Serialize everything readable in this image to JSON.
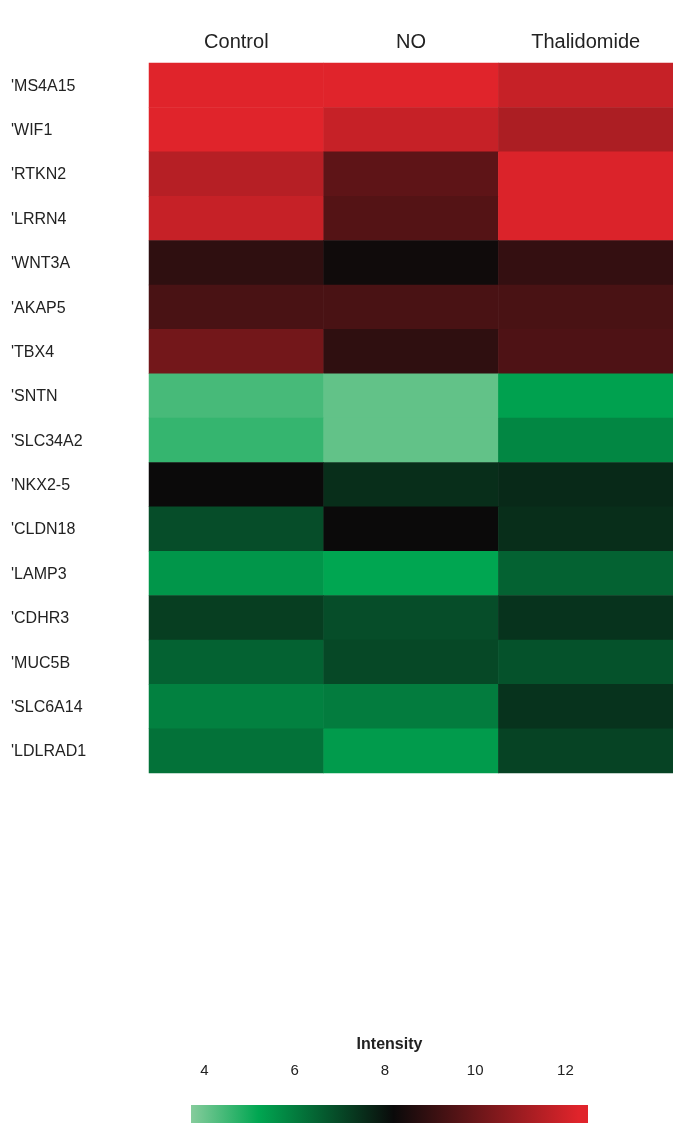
{
  "chart_data": {
    "type": "heatmap",
    "categories": [
      "Control",
      "NO",
      "Thalidomide"
    ],
    "y_categories": [
      "'MS4A15",
      "'WIF1",
      "'RTKN2",
      "'LRRN4",
      "'WNT3A",
      "'AKAP5",
      "'TBX4",
      "'SNTN",
      "'SLC34A2",
      "'NKX2-5",
      "'CLDN18",
      "'LAMP3",
      "'CDHR3",
      "'MUC5B",
      "'SLC6A14",
      "'LDLRAD1"
    ],
    "cells": [
      [
        12.3,
        12.3,
        11.8
      ],
      [
        12.3,
        11.8,
        11.3
      ],
      [
        11.5,
        9.8,
        12.2
      ],
      [
        11.8,
        9.6,
        12.2
      ],
      [
        8.9,
        8.3,
        9.0
      ],
      [
        9.4,
        9.4,
        9.4
      ],
      [
        10.2,
        8.9,
        9.5
      ],
      [
        4.4,
        4.1,
        5.3
      ],
      [
        4.6,
        4.1,
        5.8
      ],
      [
        8.2,
        7.5,
        7.6
      ],
      [
        6.9,
        8.2,
        7.5
      ],
      [
        5.5,
        5.2,
        6.5
      ],
      [
        7.2,
        6.9,
        7.4
      ],
      [
        6.5,
        7.0,
        6.8
      ],
      [
        5.9,
        6.0,
        7.4
      ],
      [
        6.2,
        5.4,
        7.1
      ]
    ],
    "clabel": "Intensity",
    "clim": [
      3.7,
      12.5
    ],
    "cticks": [
      4,
      6,
      8,
      10,
      12
    ]
  }
}
